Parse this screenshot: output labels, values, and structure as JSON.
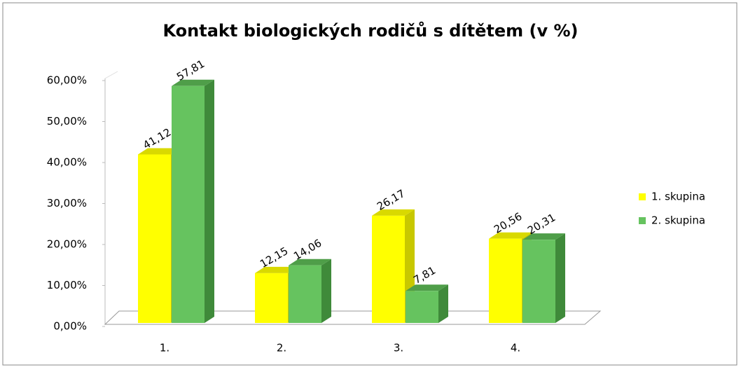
{
  "chart_data": {
    "type": "bar3d",
    "title": "Kontakt biologických rodičů s dítětem (v %)",
    "categories": [
      "1.",
      "2.",
      "3.",
      "4."
    ],
    "series": [
      {
        "name": "1. skupina",
        "color": "#ffff00",
        "values": [
          41.12,
          12.15,
          26.17,
          20.56
        ],
        "value_labels": [
          "41,12",
          "12,15",
          "26,17",
          "20,56"
        ]
      },
      {
        "name": "2. skupina",
        "color": "#66c35f",
        "values": [
          57.81,
          14.06,
          7.81,
          20.31
        ],
        "value_labels": [
          "57,81",
          "14,06",
          "7,81",
          "20,31"
        ]
      }
    ],
    "ylim": [
      0,
      60
    ],
    "yticks": [
      {
        "value": 0,
        "label": "0,00%"
      },
      {
        "value": 10,
        "label": "10,00%"
      },
      {
        "value": 20,
        "label": "20,00%"
      },
      {
        "value": 30,
        "label": "30,00%"
      },
      {
        "value": 40,
        "label": "40,00%"
      },
      {
        "value": 50,
        "label": "50,00%"
      },
      {
        "value": 60,
        "label": "60,00%"
      }
    ],
    "legend": "right"
  }
}
